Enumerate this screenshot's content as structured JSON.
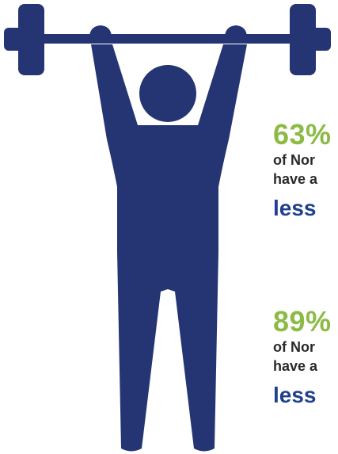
{
  "colors": {
    "figure": "#253573",
    "percent": "#8cbb45",
    "highlight": "#203f8e",
    "body_text": "#2a2a2a"
  },
  "icon": "weightlifter-icon",
  "stats": [
    {
      "percent": "63%",
      "line1": "of Nor",
      "line2": "have a",
      "highlight": "less"
    },
    {
      "percent": "89%",
      "line1": "of Nor",
      "line2": "have a",
      "highlight": "less"
    }
  ]
}
